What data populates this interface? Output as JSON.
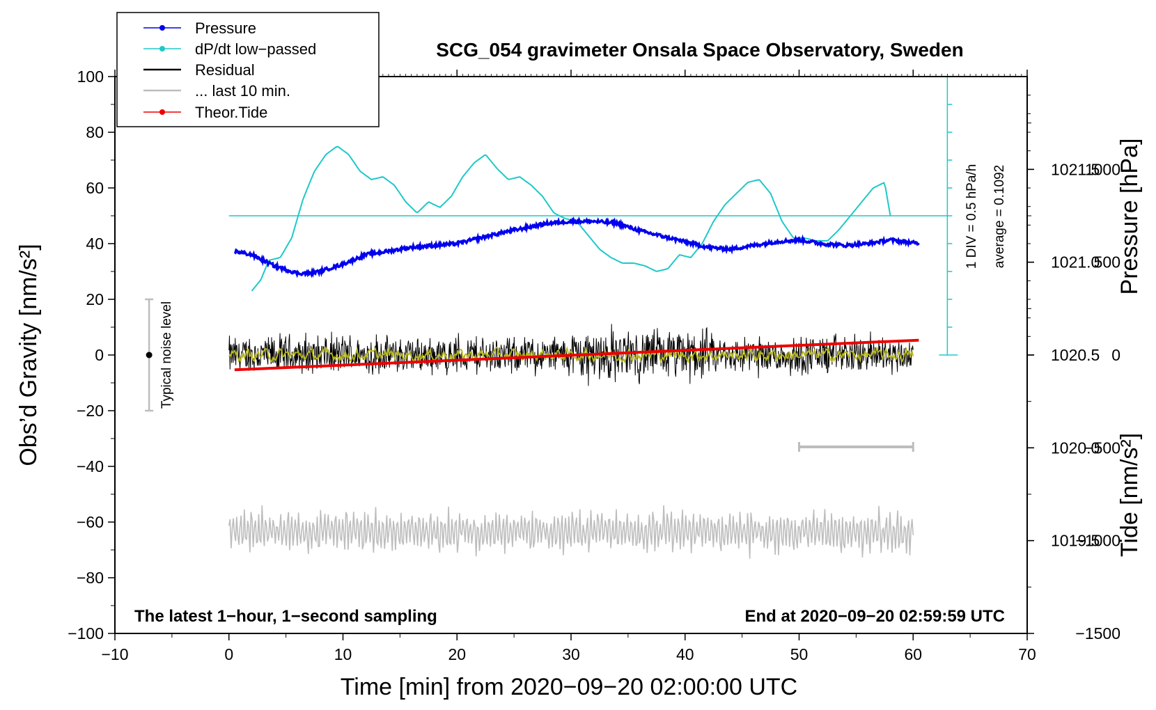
{
  "chart_data": {
    "type": "line",
    "title": "SCG_054 gravimeter Onsala Space Observatory, Sweden",
    "xlabel": "Time [min] from 2020−09−20 02:00:00 UTC",
    "ylabel_left": "Obs’d Gravity [nm/s²]",
    "ylabel_pressure": "Pressure [hPa]",
    "ylabel_tide": "Tide [nm/s²]",
    "xlim": [
      -10,
      70
    ],
    "ylim": [
      -100,
      100
    ],
    "pressure_lim": [
      1019.0,
      1022.0
    ],
    "tide_lim": [
      -1500,
      1500
    ],
    "x_ticks": [
      -10,
      0,
      10,
      20,
      30,
      40,
      50,
      60,
      70
    ],
    "x_tick_labels": [
      "−10",
      "0",
      "10",
      "20",
      "30",
      "40",
      "50",
      "60",
      "70"
    ],
    "y_ticks": [
      -100,
      -80,
      -60,
      -40,
      -20,
      0,
      20,
      40,
      60,
      80,
      100
    ],
    "y_tick_labels": [
      "−100",
      "−80",
      "−60",
      "−40",
      "−20",
      "0",
      "20",
      "40",
      "60",
      "80",
      "100"
    ],
    "pressure_ticks": [
      1019.5,
      1020.0,
      1020.5,
      1021.0,
      1021.5
    ],
    "pressure_tick_labels": [
      "1019.5",
      "1020.0",
      "1020.5",
      "1021.0",
      "1021.5"
    ],
    "tide_ticks": [
      -1500,
      -1000,
      -500,
      0,
      500,
      1000
    ],
    "tide_tick_labels": [
      "−1500",
      "−1000",
      "−500",
      "0",
      "500",
      "1000"
    ],
    "legend": {
      "position": "top-left",
      "entries": [
        "Pressure",
        "dP/dt low−passed",
        "Residual",
        "... last 10 min.",
        "Theor.Tide"
      ]
    },
    "colors": {
      "pressure": "#0000ee",
      "dpdt": "#1ec8c8",
      "residual": "#000000",
      "residual_smooth": "#b8b820",
      "last10": "#bdbdbd",
      "tide": "#ee0000"
    },
    "series": [
      {
        "name": "Pressure",
        "axis": "pressure",
        "x": [
          0.5,
          2,
          4,
          6,
          7,
          8,
          10,
          12,
          14,
          16,
          20,
          24,
          28,
          30,
          32,
          34,
          36,
          38,
          40,
          42,
          44,
          46,
          48,
          50,
          52,
          54,
          56,
          58,
          60.5
        ],
        "values": [
          1021.06,
          1021.04,
          1020.98,
          1020.94,
          1020.94,
          1020.95,
          1020.99,
          1021.04,
          1021.06,
          1021.08,
          1021.1,
          1021.16,
          1021.21,
          1021.22,
          1021.22,
          1021.21,
          1021.17,
          1021.14,
          1021.11,
          1021.08,
          1021.07,
          1021.09,
          1021.11,
          1021.12,
          1021.1,
          1021.09,
          1021.1,
          1021.12,
          1021.1
        ]
      },
      {
        "name": "dP/dt low−passed",
        "axis": "left",
        "x": [
          2,
          2.8,
          3.5,
          4.5,
          5.5,
          6.5,
          7.5,
          8.5,
          9.5,
          10.5,
          11.5,
          12.5,
          13.5,
          14.5,
          15.5,
          16.5,
          17.5,
          18.5,
          19.5,
          20.5,
          21.5,
          22.5,
          23.5,
          24.5,
          25.5,
          26.5,
          27.5,
          28.5,
          29.5,
          30.5,
          31.5,
          32.5,
          33.5,
          34.5,
          35.5,
          36.5,
          37.5,
          38.5,
          39.5,
          40.5,
          41.5,
          42.5,
          43.5,
          44.5,
          45.5,
          46.5,
          47.5,
          48.5,
          49.5,
          50.5,
          51.5,
          52.5,
          53.5,
          54.5,
          55.5,
          56.5,
          57.5,
          58
        ],
        "values": [
          23,
          27,
          34,
          35,
          42,
          56,
          66,
          72,
          75,
          72,
          66,
          63,
          64,
          61,
          55,
          51,
          55,
          53,
          57,
          64,
          69,
          72,
          67,
          63,
          64,
          61,
          57,
          51,
          49,
          48,
          43,
          38,
          35,
          33,
          33,
          32,
          30,
          31,
          36,
          35,
          40,
          48,
          54,
          58,
          62,
          63,
          58,
          48,
          42,
          42,
          41,
          41,
          45,
          50,
          55,
          60,
          62,
          50
        ]
      },
      {
        "name": "Residual",
        "axis": "left",
        "x_range": [
          0,
          60
        ],
        "baseline": 0,
        "envelope": [
          -18,
          18
        ]
      },
      {
        "name": "Residual (smoothed)",
        "axis": "left",
        "x_range": [
          0,
          60
        ],
        "baseline": 0,
        "envelope": [
          -3,
          3
        ]
      },
      {
        "name": "... last 10 min.",
        "axis": "left",
        "x_range": [
          0,
          60
        ],
        "baseline": -62,
        "envelope": [
          -77,
          -52
        ]
      },
      {
        "name": "Theor.Tide",
        "axis": "tide",
        "x": [
          0.5,
          60.5
        ],
        "values": [
          -80,
          80
        ]
      }
    ],
    "dpdt_scale": {
      "label": "1 DIV = 0.5 hPa/h",
      "average_label": "average = 0.1092",
      "x": 63,
      "zero_level": 50,
      "range": [
        0,
        100
      ],
      "divisions": 10
    },
    "noise_bar": {
      "label": "Typical noise level",
      "x": -7,
      "center": 0,
      "range": [
        -20,
        20
      ]
    },
    "last_10_min_bracket": {
      "x_range": [
        50,
        60
      ],
      "level": -33
    },
    "footer_left": "The latest 1−hour, 1−second sampling",
    "footer_right": "End at 2020−09−20 02:59:59 UTC"
  }
}
